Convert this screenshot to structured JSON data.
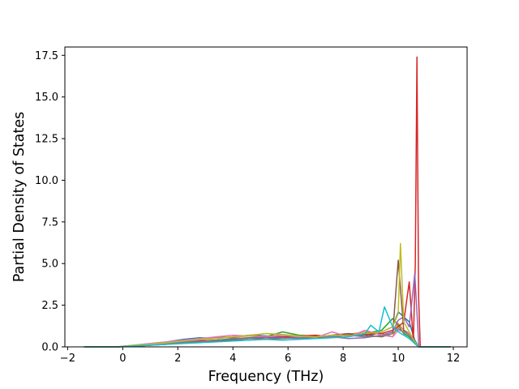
{
  "chart_data": {
    "type": "line",
    "title": "",
    "xlabel": "Frequency (THz)",
    "ylabel": "Partial Density of States",
    "xlim": [
      -2.1,
      12.5
    ],
    "ylim": [
      0,
      18.0
    ],
    "xticks": [
      -2,
      0,
      2,
      4,
      6,
      8,
      10,
      12
    ],
    "xtick_labels": [
      "−2",
      "0",
      "2",
      "4",
      "6",
      "8",
      "10",
      "12"
    ],
    "yticks": [
      0.0,
      2.5,
      5.0,
      7.5,
      10.0,
      12.5,
      15.0,
      17.5
    ],
    "ytick_labels": [
      "0.0",
      "2.5",
      "5.0",
      "7.5",
      "10.0",
      "12.5",
      "15.0",
      "17.5"
    ],
    "grid": false,
    "legend": "none",
    "series_colors": [
      "#1f77b4",
      "#ff7f0e",
      "#2ca02c",
      "#d62728",
      "#9467bd",
      "#8c564b",
      "#e377c2",
      "#7f7f7f",
      "#bcbd22",
      "#17becf"
    ],
    "series": [
      {
        "x": [
          -1.4,
          -0.2,
          0.4,
          1.0,
          1.6,
          2.2,
          2.8,
          3.4,
          4.0,
          4.6,
          5.2,
          5.8,
          6.4,
          7.0,
          7.6,
          8.2,
          8.8,
          9.4,
          9.8,
          10.0,
          10.2,
          10.4,
          10.6,
          10.75,
          11.0,
          11.9
        ],
        "values": [
          0.0,
          0.0,
          0.1,
          0.2,
          0.3,
          0.45,
          0.55,
          0.5,
          0.6,
          0.7,
          0.65,
          0.6,
          0.55,
          0.6,
          0.7,
          0.8,
          0.6,
          0.9,
          1.2,
          2.1,
          1.8,
          1.5,
          0.4,
          0.0,
          0.0,
          0.0
        ]
      },
      {
        "x": [
          -1.4,
          -0.2,
          0.4,
          1.0,
          1.6,
          2.2,
          2.8,
          3.4,
          4.0,
          4.6,
          5.2,
          5.8,
          6.4,
          7.0,
          7.6,
          8.2,
          8.8,
          9.4,
          9.8,
          10.0,
          10.2,
          10.4,
          10.6,
          10.75,
          11.0,
          11.9
        ],
        "values": [
          0.0,
          0.0,
          0.05,
          0.15,
          0.25,
          0.35,
          0.45,
          0.55,
          0.6,
          0.65,
          0.8,
          0.7,
          0.6,
          0.55,
          0.65,
          0.75,
          0.9,
          0.8,
          0.6,
          1.4,
          1.0,
          0.7,
          0.3,
          0.0,
          0.0,
          0.0
        ]
      },
      {
        "x": [
          -1.4,
          -0.2,
          0.4,
          1.0,
          1.6,
          2.2,
          2.8,
          3.4,
          4.0,
          4.6,
          5.2,
          5.8,
          6.4,
          7.0,
          7.6,
          8.2,
          8.8,
          9.4,
          9.8,
          10.0,
          10.2,
          10.4,
          10.6,
          10.75,
          11.0,
          11.9
        ],
        "values": [
          0.0,
          0.0,
          0.05,
          0.1,
          0.2,
          0.3,
          0.35,
          0.4,
          0.5,
          0.55,
          0.6,
          0.9,
          0.7,
          0.65,
          0.6,
          0.7,
          0.8,
          1.0,
          1.7,
          1.3,
          0.8,
          0.6,
          0.2,
          0.0,
          0.0,
          0.0
        ]
      },
      {
        "x": [
          -1.4,
          -0.2,
          0.4,
          1.0,
          1.6,
          2.2,
          2.8,
          3.4,
          4.0,
          4.6,
          5.2,
          5.8,
          6.4,
          7.0,
          7.6,
          8.2,
          8.8,
          9.4,
          9.8,
          10.0,
          10.2,
          10.4,
          10.55,
          10.62,
          10.68,
          10.74,
          10.8,
          11.0,
          11.9
        ],
        "values": [
          0.0,
          0.0,
          0.05,
          0.1,
          0.2,
          0.3,
          0.35,
          0.4,
          0.45,
          0.5,
          0.55,
          0.6,
          0.65,
          0.7,
          0.6,
          0.7,
          0.75,
          0.8,
          1.0,
          1.2,
          1.5,
          3.9,
          0.3,
          5.0,
          17.4,
          3.0,
          0.0,
          0.0,
          0.0
        ]
      },
      {
        "x": [
          -1.4,
          -0.2,
          0.4,
          1.0,
          1.6,
          2.2,
          2.8,
          3.4,
          4.0,
          4.6,
          5.2,
          5.8,
          6.4,
          7.0,
          7.6,
          8.2,
          8.8,
          9.4,
          9.8,
          10.0,
          10.2,
          10.4,
          10.6,
          10.75,
          11.0,
          11.9
        ],
        "values": [
          0.0,
          0.0,
          0.05,
          0.15,
          0.2,
          0.3,
          0.4,
          0.6,
          0.55,
          0.5,
          0.6,
          0.55,
          0.5,
          0.55,
          0.6,
          0.5,
          0.55,
          0.7,
          0.9,
          1.6,
          1.8,
          1.2,
          4.4,
          0.0,
          0.0,
          0.0
        ]
      },
      {
        "x": [
          -1.4,
          -0.2,
          0.4,
          1.0,
          1.6,
          2.2,
          2.8,
          3.4,
          4.0,
          4.6,
          5.2,
          5.8,
          6.4,
          7.0,
          7.6,
          8.2,
          8.8,
          9.4,
          9.8,
          10.0,
          10.2,
          10.4,
          10.6,
          10.75,
          11.0,
          11.9
        ],
        "values": [
          0.0,
          0.0,
          0.05,
          0.1,
          0.15,
          0.25,
          0.3,
          0.35,
          0.4,
          0.5,
          0.55,
          0.5,
          0.6,
          0.55,
          0.7,
          0.8,
          0.7,
          0.6,
          0.8,
          5.2,
          1.0,
          0.8,
          0.3,
          0.0,
          0.0,
          0.0
        ]
      },
      {
        "x": [
          -1.4,
          -0.2,
          0.4,
          1.0,
          1.6,
          2.2,
          2.8,
          3.4,
          4.0,
          4.6,
          5.2,
          5.8,
          6.4,
          7.0,
          7.6,
          8.2,
          8.8,
          9.4,
          9.8,
          10.0,
          10.2,
          10.4,
          10.6,
          10.75,
          11.0,
          11.9
        ],
        "values": [
          0.0,
          0.0,
          0.1,
          0.2,
          0.3,
          0.4,
          0.5,
          0.6,
          0.7,
          0.65,
          0.6,
          0.7,
          0.6,
          0.55,
          0.9,
          0.6,
          1.0,
          0.7,
          0.6,
          1.0,
          0.9,
          0.8,
          0.3,
          0.0,
          0.0,
          0.0
        ]
      },
      {
        "x": [
          -1.4,
          -0.2,
          0.4,
          1.0,
          1.6,
          2.2,
          2.8,
          3.4,
          4.0,
          4.6,
          5.2,
          5.8,
          6.4,
          7.0,
          7.6,
          8.2,
          8.8,
          9.4,
          9.8,
          10.0,
          10.2,
          10.4,
          10.6,
          10.75,
          11.0,
          11.9
        ],
        "values": [
          0.0,
          0.0,
          0.05,
          0.1,
          0.2,
          0.25,
          0.3,
          0.4,
          0.45,
          0.5,
          0.45,
          0.5,
          0.55,
          0.6,
          0.65,
          0.7,
          0.6,
          0.65,
          0.8,
          1.1,
          0.9,
          0.7,
          0.2,
          0.0,
          0.0,
          0.0
        ]
      },
      {
        "x": [
          -1.4,
          -0.2,
          0.4,
          1.0,
          1.6,
          2.2,
          2.8,
          3.4,
          4.0,
          4.6,
          5.2,
          5.8,
          6.4,
          7.0,
          7.6,
          8.2,
          8.8,
          9.4,
          9.8,
          10.0,
          10.08,
          10.2,
          10.4,
          10.6,
          10.75,
          11.0,
          11.9
        ],
        "values": [
          0.0,
          0.0,
          0.1,
          0.15,
          0.25,
          0.35,
          0.45,
          0.5,
          0.6,
          0.7,
          0.8,
          0.75,
          0.65,
          0.6,
          0.7,
          0.65,
          0.8,
          0.9,
          1.2,
          2.0,
          6.2,
          1.5,
          0.9,
          0.3,
          0.0,
          0.0,
          0.0
        ]
      },
      {
        "x": [
          -1.4,
          -0.2,
          0.4,
          1.0,
          1.6,
          2.2,
          2.8,
          3.4,
          4.0,
          4.6,
          5.2,
          5.8,
          6.4,
          7.0,
          7.6,
          8.2,
          8.8,
          9.0,
          9.3,
          9.5,
          9.8,
          10.0,
          10.2,
          10.4,
          10.6,
          10.75,
          11.0,
          11.9
        ],
        "values": [
          0.0,
          0.0,
          0.05,
          0.1,
          0.15,
          0.2,
          0.25,
          0.3,
          0.35,
          0.4,
          0.45,
          0.4,
          0.45,
          0.5,
          0.55,
          0.6,
          0.8,
          1.3,
          0.9,
          2.4,
          1.2,
          0.9,
          0.7,
          0.5,
          0.2,
          0.0,
          0.0,
          0.0
        ]
      }
    ]
  }
}
